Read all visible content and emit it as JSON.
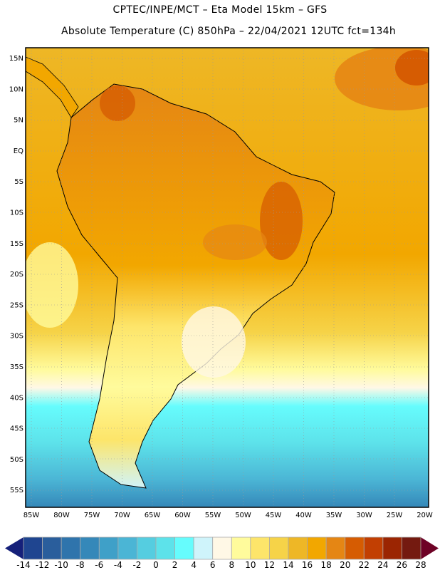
{
  "header": {
    "title": "CPTEC/INPE/MCT –  Eta Model 15km – GFS",
    "subtitle": "Absolute Temperature (C) 850hPa – 22/04/2021 12UTC fct=134h"
  },
  "map": {
    "lat_labels": [
      "15N",
      "10N",
      "5N",
      "EQ",
      "5S",
      "10S",
      "15S",
      "20S",
      "25S",
      "30S",
      "35S",
      "40S",
      "45S",
      "50S",
      "55S"
    ],
    "lon_labels": [
      "85W",
      "80W",
      "75W",
      "70W",
      "65W",
      "60W",
      "55W",
      "50W",
      "45W",
      "40W",
      "35W",
      "30W",
      "25W",
      "20W"
    ]
  },
  "colorbar": {
    "labels": [
      "-14",
      "-12",
      "-10",
      "-8",
      "-6",
      "-4",
      "-2",
      "0",
      "2",
      "4",
      "6",
      "8",
      "10",
      "12",
      "14",
      "16",
      "18",
      "20",
      "22",
      "24",
      "26",
      "28"
    ],
    "colors": [
      "#1f4590",
      "#2a5e9c",
      "#2f74ac",
      "#3588b9",
      "#3fa0c8",
      "#4bb5d5",
      "#55cde0",
      "#5de2ea",
      "#66fcfd",
      "#cff4fb",
      "#fff8e6",
      "#fffb9c",
      "#fde56a",
      "#f6d348",
      "#eeb726",
      "#f2a700",
      "#e58614",
      "#d65c02",
      "#c23f02",
      "#9b2502",
      "#741a10"
    ],
    "under_color": "#15207a",
    "over_color": "#6e0226"
  }
}
